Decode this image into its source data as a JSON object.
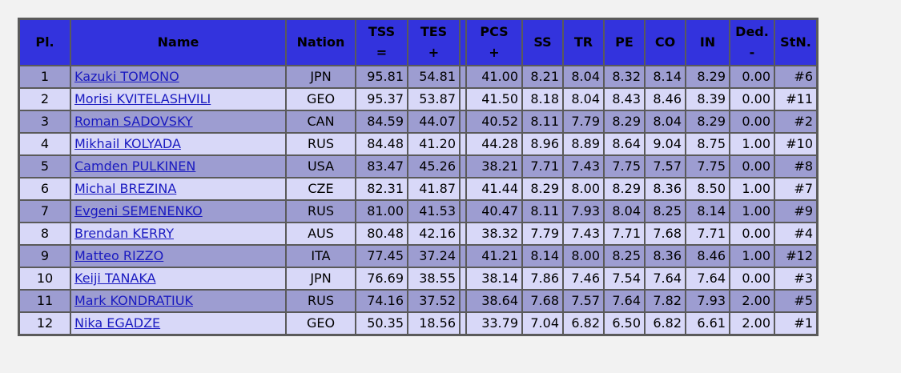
{
  "headers": {
    "pl": "Pl.",
    "name": "Name",
    "nation": "Nation",
    "tss_top": "TSS",
    "tss_bottom": "=",
    "tes_top": "TES",
    "tes_bottom": "+",
    "pcs_top": "PCS",
    "pcs_bottom": "+",
    "ss": "SS",
    "tr": "TR",
    "pe": "PE",
    "co": "CO",
    "in": "IN",
    "ded_top": "Ded.",
    "ded_bottom": "-",
    "stn": "StN."
  },
  "rows": [
    {
      "pl": "1",
      "name": "Kazuki TOMONO",
      "nation": "JPN",
      "tss": "95.81",
      "tes": "54.81",
      "pcs": "41.00",
      "ss": "8.21",
      "tr": "8.04",
      "pe": "8.32",
      "co": "8.14",
      "in": "8.29",
      "ded": "0.00",
      "stn": "#6"
    },
    {
      "pl": "2",
      "name": "Morisi KVITELASHVILI",
      "nation": "GEO",
      "tss": "95.37",
      "tes": "53.87",
      "pcs": "41.50",
      "ss": "8.18",
      "tr": "8.04",
      "pe": "8.43",
      "co": "8.46",
      "in": "8.39",
      "ded": "0.00",
      "stn": "#11"
    },
    {
      "pl": "3",
      "name": "Roman SADOVSKY",
      "nation": "CAN",
      "tss": "84.59",
      "tes": "44.07",
      "pcs": "40.52",
      "ss": "8.11",
      "tr": "7.79",
      "pe": "8.29",
      "co": "8.04",
      "in": "8.29",
      "ded": "0.00",
      "stn": "#2"
    },
    {
      "pl": "4",
      "name": "Mikhail KOLYADA",
      "nation": "RUS",
      "tss": "84.48",
      "tes": "41.20",
      "pcs": "44.28",
      "ss": "8.96",
      "tr": "8.89",
      "pe": "8.64",
      "co": "9.04",
      "in": "8.75",
      "ded": "1.00",
      "stn": "#10"
    },
    {
      "pl": "5",
      "name": "Camden PULKINEN",
      "nation": "USA",
      "tss": "83.47",
      "tes": "45.26",
      "pcs": "38.21",
      "ss": "7.71",
      "tr": "7.43",
      "pe": "7.75",
      "co": "7.57",
      "in": "7.75",
      "ded": "0.00",
      "stn": "#8"
    },
    {
      "pl": "6",
      "name": "Michal BREZINA",
      "nation": "CZE",
      "tss": "82.31",
      "tes": "41.87",
      "pcs": "41.44",
      "ss": "8.29",
      "tr": "8.00",
      "pe": "8.29",
      "co": "8.36",
      "in": "8.50",
      "ded": "1.00",
      "stn": "#7"
    },
    {
      "pl": "7",
      "name": "Evgeni SEMENENKO",
      "nation": "RUS",
      "tss": "81.00",
      "tes": "41.53",
      "pcs": "40.47",
      "ss": "8.11",
      "tr": "7.93",
      "pe": "8.04",
      "co": "8.25",
      "in": "8.14",
      "ded": "1.00",
      "stn": "#9"
    },
    {
      "pl": "8",
      "name": "Brendan KERRY",
      "nation": "AUS",
      "tss": "80.48",
      "tes": "42.16",
      "pcs": "38.32",
      "ss": "7.79",
      "tr": "7.43",
      "pe": "7.71",
      "co": "7.68",
      "in": "7.71",
      "ded": "0.00",
      "stn": "#4"
    },
    {
      "pl": "9",
      "name": "Matteo RIZZO",
      "nation": "ITA",
      "tss": "77.45",
      "tes": "37.24",
      "pcs": "41.21",
      "ss": "8.14",
      "tr": "8.00",
      "pe": "8.25",
      "co": "8.36",
      "in": "8.46",
      "ded": "1.00",
      "stn": "#12"
    },
    {
      "pl": "10",
      "name": "Keiji TANAKA",
      "nation": "JPN",
      "tss": "76.69",
      "tes": "38.55",
      "pcs": "38.14",
      "ss": "7.86",
      "tr": "7.46",
      "pe": "7.54",
      "co": "7.64",
      "in": "7.64",
      "ded": "0.00",
      "stn": "#3"
    },
    {
      "pl": "11",
      "name": "Mark KONDRATIUK",
      "nation": "RUS",
      "tss": "74.16",
      "tes": "37.52",
      "pcs": "38.64",
      "ss": "7.68",
      "tr": "7.57",
      "pe": "7.64",
      "co": "7.82",
      "in": "7.93",
      "ded": "2.00",
      "stn": "#5"
    },
    {
      "pl": "12",
      "name": "Nika EGADZE",
      "nation": "GEO",
      "tss": "50.35",
      "tes": "18.56",
      "pcs": "33.79",
      "ss": "7.04",
      "tr": "6.82",
      "pe": "6.50",
      "co": "6.82",
      "in": "6.61",
      "ded": "2.00",
      "stn": "#1"
    }
  ]
}
